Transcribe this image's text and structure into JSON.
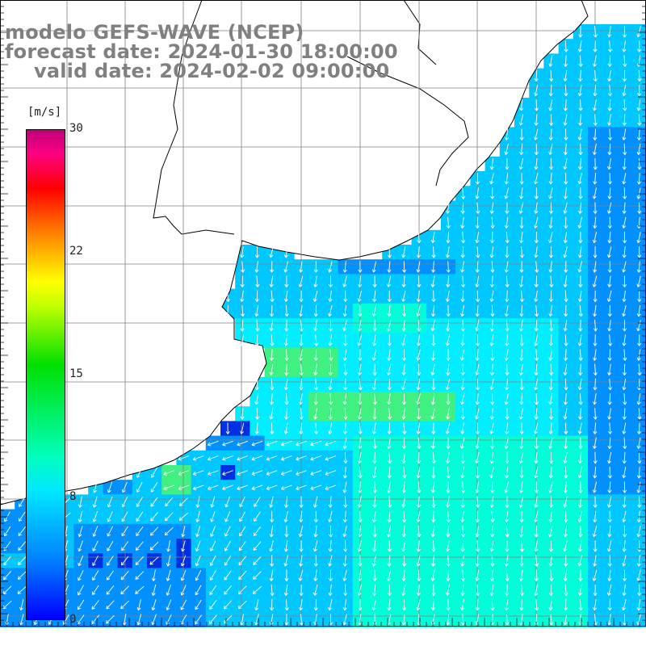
{
  "title": {
    "line1": "modelo GEFS-WAVE (NCEP)",
    "line2": "forecast date: 2024-01-30 18:00:00",
    "line3": "valid date: 2024-02-02 09:00:00"
  },
  "colorbar": {
    "unit": "[m/s]",
    "ticks": [
      "30",
      "22",
      "15",
      "8",
      "0"
    ],
    "tick_values": [
      30,
      22,
      15,
      8,
      0
    ],
    "colors": [
      "#0000ff",
      "#0080ff",
      "#00e6ff",
      "#00ffc0",
      "#00e000",
      "#ffff00",
      "#ff8000",
      "#ff0000",
      "#c0007a"
    ]
  },
  "map": {
    "land_color": "#ffffff",
    "coastline_color": "#000000",
    "gridline_color": "#808080",
    "arrow_color": "#ffffff",
    "field_colors": {
      "dark_blue": "#0030e0",
      "blue": "#0090ff",
      "light_blue": "#00c8ff",
      "cyan": "#00eeff",
      "aqua": "#00ffd8",
      "green": "#40f080"
    }
  }
}
